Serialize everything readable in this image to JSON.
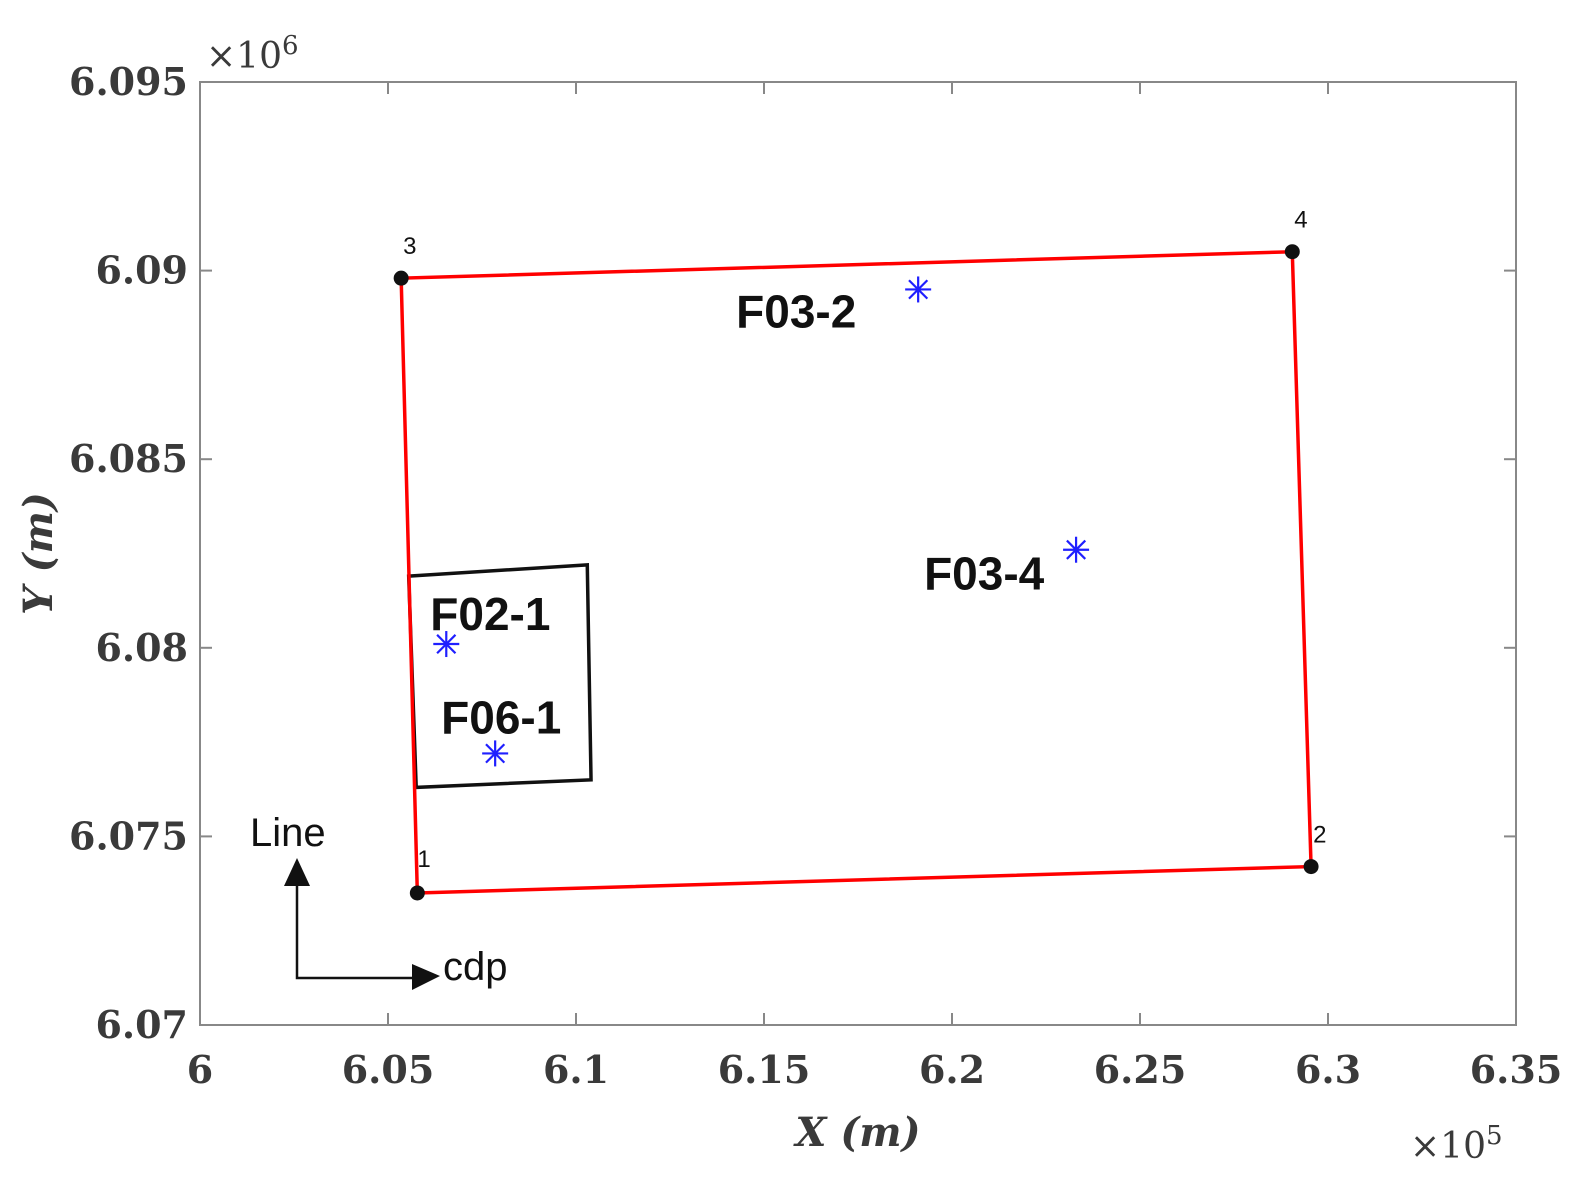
{
  "chart_data": {
    "type": "scatter",
    "xlabel": "X (m)",
    "ylabel": "Y (m)",
    "x_multiplier": "×10^5",
    "y_multiplier": "×10^6",
    "x_multiplier_base": "×10",
    "x_multiplier_exp": "5",
    "y_multiplier_base": "×10",
    "y_multiplier_exp": "6",
    "xlim": [
      6.0,
      6.35
    ],
    "ylim": [
      6.07,
      6.095
    ],
    "x_ticks": [
      "6",
      "6.05",
      "6.1",
      "6.15",
      "6.2",
      "6.25",
      "6.3",
      "6.35"
    ],
    "x_tick_values": [
      6.0,
      6.05,
      6.1,
      6.15,
      6.2,
      6.25,
      6.3,
      6.35
    ],
    "y_ticks": [
      "6.07",
      "6.075",
      "6.08",
      "6.085",
      "6.09",
      "6.095"
    ],
    "y_tick_values": [
      6.07,
      6.075,
      6.08,
      6.085,
      6.09,
      6.095
    ],
    "grid": false,
    "survey_boundary": {
      "color": "#ff0000",
      "corners": [
        {
          "label": "1",
          "x": 6.0578,
          "y": 6.0735
        },
        {
          "label": "2",
          "x": 6.2955,
          "y": 6.0742
        },
        {
          "label": "4",
          "x": 6.2905,
          "y": 6.0905
        },
        {
          "label": "3",
          "x": 6.0535,
          "y": 6.0898
        }
      ]
    },
    "subarea_box": {
      "color": "#111111",
      "corners": [
        {
          "x": 6.0555,
          "y": 6.0819
        },
        {
          "x": 6.103,
          "y": 6.0822
        },
        {
          "x": 6.104,
          "y": 6.0765
        },
        {
          "x": 6.0575,
          "y": 6.0763
        }
      ]
    },
    "wells": {
      "color": "#1f1fff",
      "points": [
        {
          "name": "F03-2",
          "x": 6.191,
          "y": 6.0895
        },
        {
          "name": "F03-4",
          "x": 6.233,
          "y": 6.0826
        },
        {
          "name": "F02-1",
          "x": 6.0655,
          "y": 6.0801
        },
        {
          "name": "F06-1",
          "x": 6.0785,
          "y": 6.0772
        }
      ]
    },
    "direction_indicator": {
      "up_label": "Line",
      "right_label": "cdp"
    }
  }
}
